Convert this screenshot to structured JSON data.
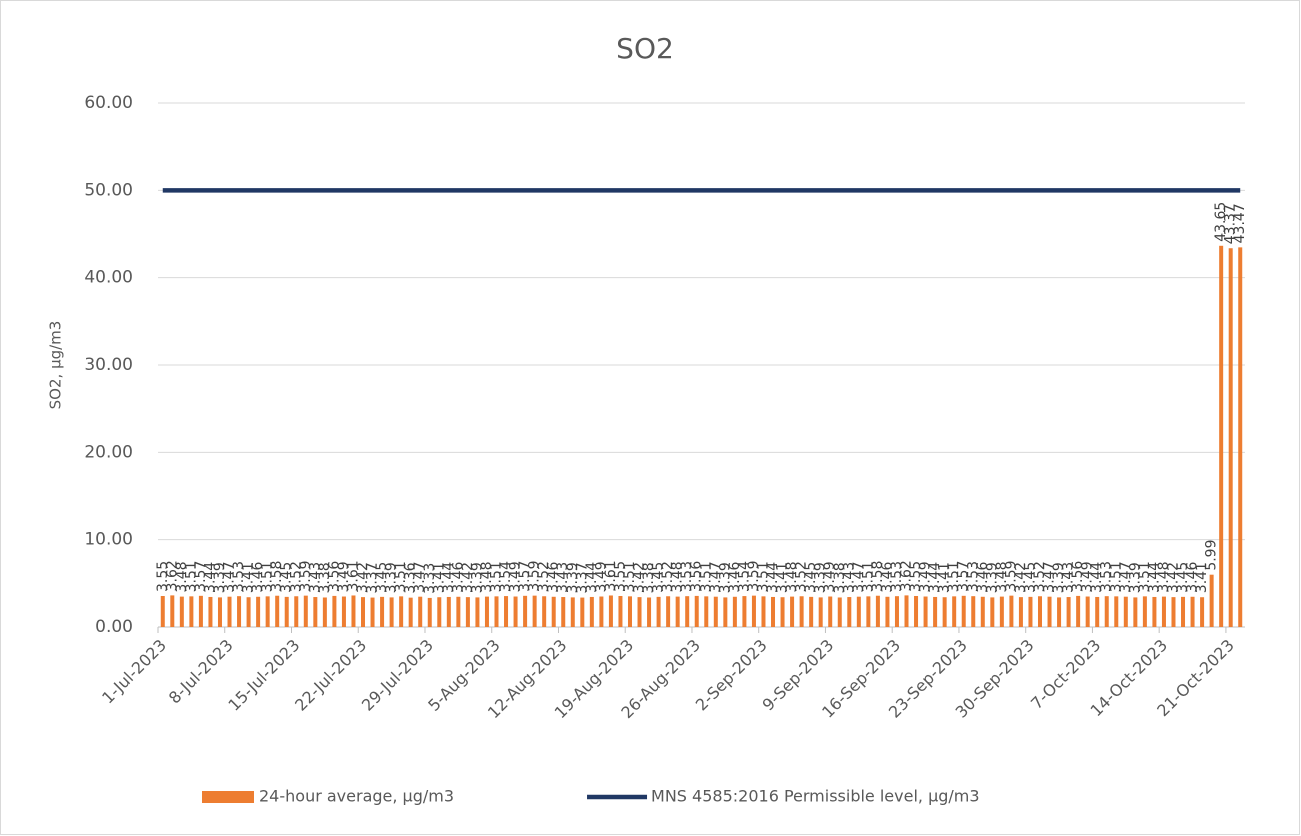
{
  "chart_data": {
    "type": "bar",
    "title": "SO2",
    "y_label": "SO2, µg/m3",
    "categories": [
      "1-Jul-2023",
      null,
      null,
      null,
      null,
      null,
      null,
      "8-Jul-2023",
      null,
      null,
      null,
      null,
      null,
      null,
      "15-Jul-2023",
      null,
      null,
      null,
      null,
      null,
      null,
      "22-Jul-2023",
      null,
      null,
      null,
      null,
      null,
      null,
      "29-Jul-2023",
      null,
      null,
      null,
      null,
      null,
      null,
      "5-Aug-2023",
      null,
      null,
      null,
      null,
      null,
      null,
      "12-Aug-2023",
      null,
      null,
      null,
      null,
      null,
      null,
      "19-Aug-2023",
      null,
      null,
      null,
      null,
      null,
      null,
      "26-Aug-2023",
      null,
      null,
      null,
      null,
      null,
      null,
      "2-Sep-2023",
      null,
      null,
      null,
      null,
      null,
      null,
      "9-Sep-2023",
      null,
      null,
      null,
      null,
      null,
      null,
      "16-Sep-2023",
      null,
      null,
      null,
      null,
      null,
      null,
      "23-Sep-2023",
      null,
      null,
      null,
      null,
      null,
      null,
      "30-Sep-2023",
      null,
      null,
      null,
      null,
      null,
      null,
      "7-Oct-2023",
      null,
      null,
      null,
      null,
      null,
      null,
      "14-Oct-2023",
      null,
      null,
      null,
      null,
      null,
      null,
      "21-Oct-2023",
      null
    ],
    "series": [
      {
        "name": "24-hour average, µg/m3",
        "type": "bar",
        "color": "#ed7d31",
        "values": [
          3.55,
          3.62,
          3.48,
          3.51,
          3.57,
          3.44,
          3.39,
          3.47,
          3.53,
          3.41,
          3.46,
          3.51,
          3.58,
          3.45,
          3.52,
          3.59,
          3.43,
          3.38,
          3.56,
          3.49,
          3.61,
          3.42,
          3.37,
          3.45,
          3.39,
          3.51,
          3.36,
          3.47,
          3.33,
          3.41,
          3.44,
          3.46,
          3.42,
          3.39,
          3.48,
          3.51,
          3.54,
          3.49,
          3.57,
          3.59,
          3.52,
          3.46,
          3.43,
          3.39,
          3.37,
          3.44,
          3.49,
          3.61,
          3.55,
          3.51,
          3.42,
          3.38,
          3.45,
          3.52,
          3.48,
          3.53,
          3.56,
          3.51,
          3.47,
          3.39,
          3.46,
          3.54,
          3.59,
          3.51,
          3.44,
          3.41,
          3.48,
          3.52,
          3.45,
          3.39,
          3.49,
          3.38,
          3.43,
          3.47,
          3.51,
          3.58,
          3.46,
          3.53,
          3.62,
          3.55,
          3.49,
          3.44,
          3.41,
          3.51,
          3.57,
          3.53,
          3.46,
          3.39,
          3.48,
          3.59,
          3.42,
          3.45,
          3.52,
          3.47,
          3.39,
          3.43,
          3.56,
          3.49,
          3.44,
          3.53,
          3.51,
          3.47,
          3.39,
          3.51,
          3.44,
          3.48,
          3.42,
          3.45,
          3.46,
          3.41,
          5.99,
          43.65,
          43.37,
          43.47
        ]
      },
      {
        "name": "MNS 4585:2016 Permissible level, µg/m3",
        "type": "line",
        "color": "#203864",
        "values": [
          50,
          50,
          50,
          50,
          50,
          50,
          50,
          50,
          50,
          50,
          50,
          50,
          50,
          50,
          50,
          50,
          50,
          50,
          50,
          50,
          50,
          50,
          50,
          50,
          50,
          50,
          50,
          50,
          50,
          50,
          50,
          50,
          50,
          50,
          50,
          50,
          50,
          50,
          50,
          50,
          50,
          50,
          50,
          50,
          50,
          50,
          50,
          50,
          50,
          50,
          50,
          50,
          50,
          50,
          50,
          50,
          50,
          50,
          50,
          50,
          50,
          50,
          50,
          50,
          50,
          50,
          50,
          50,
          50,
          50,
          50,
          50,
          50,
          50,
          50,
          50,
          50,
          50,
          50,
          50,
          50,
          50,
          50,
          50,
          50,
          50,
          50,
          50,
          50,
          50,
          50,
          50,
          50,
          50,
          50,
          50,
          50,
          50,
          50,
          50,
          50,
          50,
          50,
          50,
          50,
          50,
          50,
          50,
          50,
          50,
          50,
          50,
          50,
          50
        ]
      }
    ],
    "ylim": [
      0,
      60
    ],
    "yticks": [
      {
        "value": 0,
        "label": "0.00"
      },
      {
        "value": 10,
        "label": "10.00"
      },
      {
        "value": 20,
        "label": "20.00"
      },
      {
        "value": 30,
        "label": "30.00"
      },
      {
        "value": 40,
        "label": "40.00"
      },
      {
        "value": 50,
        "label": "50.00"
      },
      {
        "value": 60,
        "label": "60.00"
      }
    ],
    "grid": true,
    "legend": "bottom"
  }
}
